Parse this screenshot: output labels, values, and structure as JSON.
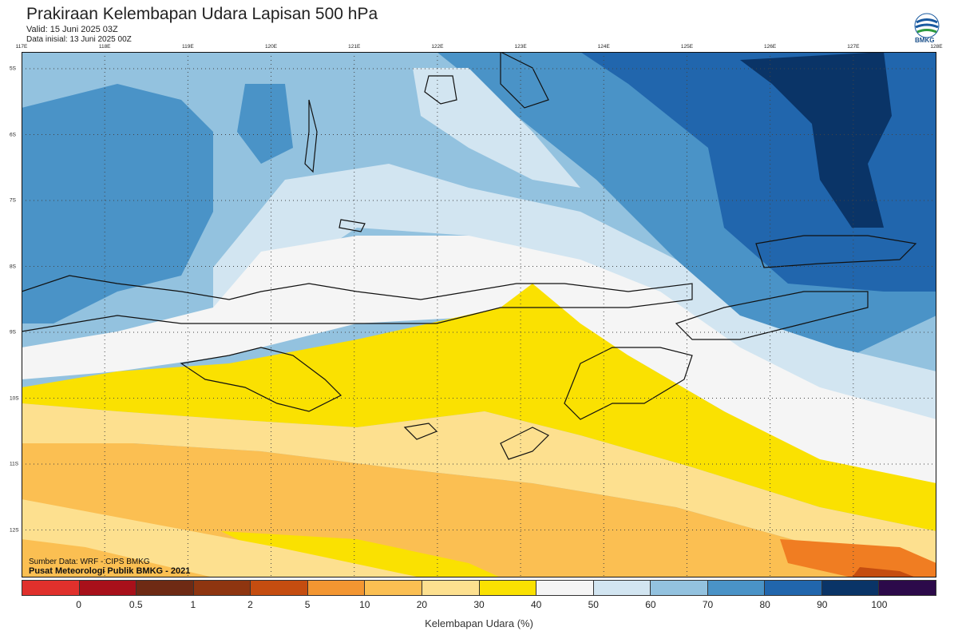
{
  "title": "Prakiraan Kelembapan Udara Lapisan 500 hPa",
  "valid": "Valid: 15 Juni 2025 03Z",
  "init": "Data inisial: 13 Juni 2025 00Z",
  "logo_text": "BMKG",
  "source_line1": "Sumber Data: WRF - CIPS BMKG",
  "source_line2": "Pusat Meteorologi Publik BMKG - 2021",
  "longitudes": [
    "117E",
    "118E",
    "119E",
    "120E",
    "121E",
    "122E",
    "123E",
    "124E",
    "125E",
    "126E",
    "127E",
    "128E"
  ],
  "latitudes": [
    "5S",
    "6S",
    "7S",
    "8S",
    "9S",
    "10S",
    "11S",
    "12S"
  ],
  "colorbar": {
    "label": "Kelembapan Udara (%)",
    "ticks": [
      "0",
      "0.5",
      "1",
      "2",
      "5",
      "10",
      "20",
      "30",
      "40",
      "50",
      "60",
      "70",
      "80",
      "90",
      "100"
    ],
    "colors": [
      "#e0302c",
      "#a8101a",
      "#6e2a14",
      "#8e3510",
      "#c54d10",
      "#f39631",
      "#fbbf52",
      "#fde08f",
      "#fae101",
      "#f5f5f5",
      "#d2e5f1",
      "#93c2df",
      "#4a93c7",
      "#2166ad",
      "#0a3467",
      "#2c0a4a"
    ]
  },
  "humidity_palette": {
    "orange_dark": "#f07d22",
    "orange": "#fbbf52",
    "light_orange": "#fde08f",
    "yellow": "#fae101",
    "white": "#f5f5f5",
    "pale_blue": "#d2e5f1",
    "light_blue": "#93c2df",
    "blue": "#4a93c7",
    "dark_blue": "#2166ad",
    "navy": "#0a3467"
  }
}
